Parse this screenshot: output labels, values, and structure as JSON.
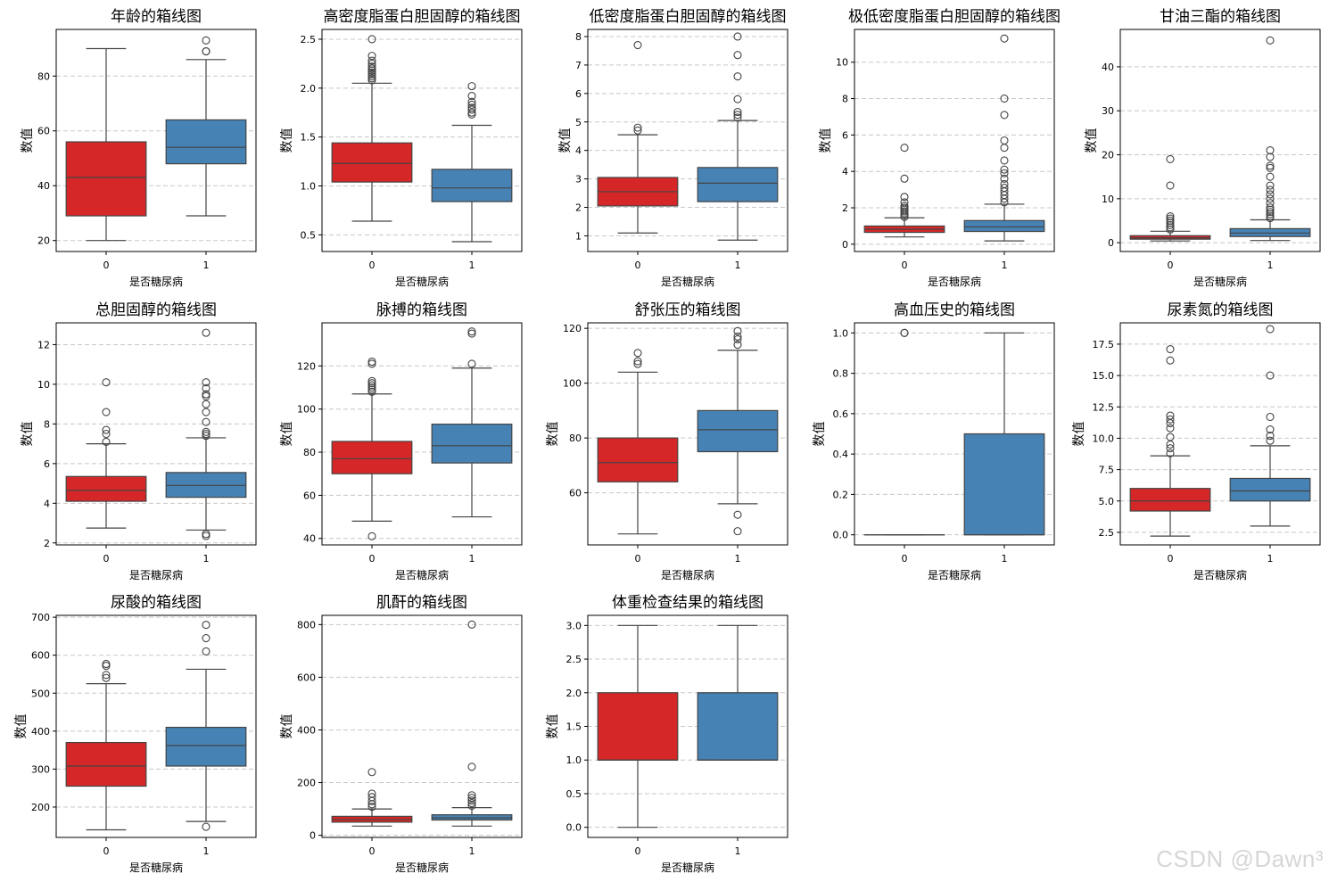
{
  "colors": {
    "class0": "#d62728",
    "class1": "#4682b4",
    "line": "#444444",
    "grid": "#c8c8c8"
  },
  "watermark": "CSDN @Dawn³",
  "chart_data": [
    {
      "type": "box",
      "title": "年龄的箱线图",
      "xlabel": "是否糖尿病",
      "ylabel": "数值",
      "categories": [
        "0",
        "1"
      ],
      "ylim": [
        16,
        97
      ],
      "yticks": [
        20,
        40,
        60,
        80
      ],
      "ytick_labels": [
        "20",
        "40",
        "60",
        "80"
      ],
      "boxes": [
        {
          "q1": 29,
          "median": 43,
          "q3": 56,
          "whislo": 20,
          "whishi": 90,
          "fliers": []
        },
        {
          "q1": 48,
          "median": 54,
          "q3": 64,
          "whislo": 29,
          "whishi": 86,
          "fliers": [
            89,
            89,
            93
          ]
        }
      ]
    },
    {
      "type": "box",
      "title": "高密度脂蛋白胆固醇的箱线图",
      "xlabel": "是否糖尿病",
      "ylabel": "数值",
      "categories": [
        "0",
        "1"
      ],
      "ylim": [
        0.33,
        2.6
      ],
      "yticks": [
        0.5,
        1.0,
        1.5,
        2.0,
        2.5
      ],
      "ytick_labels": [
        "0.5",
        "1.0",
        "1.5",
        "2.0",
        "2.5"
      ],
      "boxes": [
        {
          "q1": 1.04,
          "median": 1.23,
          "q3": 1.44,
          "whislo": 0.64,
          "whishi": 2.05,
          "fliers": [
            2.08,
            2.1,
            2.12,
            2.14,
            2.16,
            2.18,
            2.2,
            2.22,
            2.25,
            2.28,
            2.33,
            2.5
          ]
        },
        {
          "q1": 0.84,
          "median": 0.98,
          "q3": 1.17,
          "whislo": 0.43,
          "whishi": 1.62,
          "fliers": [
            1.73,
            1.75,
            1.78,
            1.8,
            1.83,
            1.86,
            1.92,
            2.02
          ]
        }
      ]
    },
    {
      "type": "box",
      "title": "低密度脂蛋白胆固醇的箱线图",
      "xlabel": "是否糖尿病",
      "ylabel": "数值",
      "categories": [
        "0",
        "1"
      ],
      "ylim": [
        0.45,
        8.25
      ],
      "yticks": [
        1,
        2,
        3,
        4,
        5,
        6,
        7,
        8
      ],
      "ytick_labels": [
        "1",
        "2",
        "3",
        "4",
        "5",
        "6",
        "7",
        "8"
      ],
      "boxes": [
        {
          "q1": 2.05,
          "median": 2.55,
          "q3": 3.05,
          "whislo": 1.1,
          "whishi": 4.55,
          "fliers": [
            4.7,
            4.8,
            7.7
          ]
        },
        {
          "q1": 2.2,
          "median": 2.85,
          "q3": 3.4,
          "whislo": 0.85,
          "whishi": 5.05,
          "fliers": [
            5.15,
            5.25,
            5.35,
            5.8,
            6.6,
            7.35,
            8.0
          ]
        }
      ]
    },
    {
      "type": "box",
      "title": "极低密度脂蛋白胆固醇的箱线图",
      "xlabel": "是否糖尿病",
      "ylabel": "数值",
      "categories": [
        "0",
        "1"
      ],
      "ylim": [
        -0.4,
        11.8
      ],
      "yticks": [
        0,
        2,
        4,
        6,
        8,
        10
      ],
      "ytick_labels": [
        "0",
        "2",
        "4",
        "6",
        "8",
        "10"
      ],
      "boxes": [
        {
          "q1": 0.65,
          "median": 0.82,
          "q3": 1.0,
          "whislo": 0.4,
          "whishi": 1.45,
          "fliers": [
            1.5,
            1.6,
            1.7,
            1.8,
            1.9,
            2.0,
            2.1,
            2.3,
            2.6,
            3.6,
            5.3
          ]
        },
        {
          "q1": 0.7,
          "median": 0.95,
          "q3": 1.3,
          "whislo": 0.18,
          "whishi": 2.2,
          "fliers": [
            2.3,
            2.5,
            2.7,
            2.9,
            3.1,
            3.3,
            3.6,
            3.9,
            4.1,
            4.6,
            5.3,
            5.7,
            7.1,
            8.0,
            11.3
          ]
        }
      ]
    },
    {
      "type": "box",
      "title": "甘油三酯的箱线图",
      "xlabel": "是否糖尿病",
      "ylabel": "数值",
      "categories": [
        "0",
        "1"
      ],
      "ylim": [
        -2.0,
        48.5
      ],
      "yticks": [
        0,
        10,
        20,
        30,
        40
      ],
      "ytick_labels": [
        "0",
        "10",
        "20",
        "30",
        "40"
      ],
      "boxes": [
        {
          "q1": 0.8,
          "median": 1.1,
          "q3": 1.6,
          "whislo": 0.4,
          "whishi": 2.6,
          "fliers": [
            3.0,
            3.5,
            4.0,
            4.5,
            5.0,
            5.5,
            6.0,
            13.0,
            19.0
          ]
        },
        {
          "q1": 1.4,
          "median": 2.2,
          "q3": 3.2,
          "whislo": 0.5,
          "whishi": 5.2,
          "fliers": [
            5.6,
            6.0,
            6.5,
            7.0,
            7.5,
            8.0,
            9.0,
            10.0,
            11.0,
            12.0,
            13.0,
            15.0,
            17.0,
            17.5,
            19.5,
            21.0,
            46.0
          ]
        }
      ]
    },
    {
      "type": "box",
      "title": "总胆固醇的箱线图",
      "xlabel": "是否糖尿病",
      "ylabel": "数值",
      "categories": [
        "0",
        "1"
      ],
      "ylim": [
        1.9,
        13.1
      ],
      "yticks": [
        2,
        4,
        6,
        8,
        10,
        12
      ],
      "ytick_labels": [
        "2",
        "4",
        "6",
        "8",
        "10",
        "12"
      ],
      "boxes": [
        {
          "q1": 4.1,
          "median": 4.65,
          "q3": 5.35,
          "whislo": 2.75,
          "whishi": 7.0,
          "fliers": [
            7.1,
            7.5,
            7.7,
            8.6,
            10.1
          ]
        },
        {
          "q1": 4.3,
          "median": 4.9,
          "q3": 5.55,
          "whislo": 2.65,
          "whishi": 7.3,
          "fliers": [
            2.35,
            2.45,
            7.4,
            7.5,
            7.6,
            8.1,
            8.6,
            9.0,
            9.4,
            9.5,
            9.8,
            10.1,
            12.6
          ]
        }
      ]
    },
    {
      "type": "box",
      "title": "脉搏的箱线图",
      "xlabel": "是否糖尿病",
      "ylabel": "数值",
      "categories": [
        "0",
        "1"
      ],
      "ylim": [
        37,
        140
      ],
      "yticks": [
        40,
        60,
        80,
        100,
        120
      ],
      "ytick_labels": [
        "40",
        "60",
        "80",
        "100",
        "120"
      ],
      "boxes": [
        {
          "q1": 70,
          "median": 77,
          "q3": 85,
          "whislo": 48,
          "whishi": 107,
          "fliers": [
            41,
            108,
            109,
            110,
            111,
            112,
            113,
            121,
            122
          ]
        },
        {
          "q1": 75,
          "median": 83,
          "q3": 93,
          "whislo": 50,
          "whishi": 119,
          "fliers": [
            121,
            135,
            136
          ]
        }
      ]
    },
    {
      "type": "box",
      "title": "舒张压的箱线图",
      "xlabel": "是否糖尿病",
      "ylabel": "数值",
      "categories": [
        "0",
        "1"
      ],
      "ylim": [
        41,
        122
      ],
      "yticks": [
        60,
        80,
        100,
        120
      ],
      "ytick_labels": [
        "60",
        "80",
        "100",
        "120"
      ],
      "boxes": [
        {
          "q1": 64,
          "median": 71,
          "q3": 80,
          "whislo": 45,
          "whishi": 104,
          "fliers": [
            107,
            108,
            111
          ]
        },
        {
          "q1": 75,
          "median": 83,
          "q3": 90,
          "whislo": 56,
          "whishi": 112,
          "fliers": [
            46,
            52,
            114,
            116,
            117,
            119
          ]
        }
      ]
    },
    {
      "type": "box",
      "title": "高血压史的箱线图",
      "xlabel": "是否糖尿病",
      "ylabel": "数值",
      "categories": [
        "0",
        "1"
      ],
      "ylim": [
        -0.05,
        1.05
      ],
      "yticks": [
        0.0,
        0.2,
        0.4,
        0.6,
        0.8,
        1.0
      ],
      "ytick_labels": [
        "0.0",
        "0.2",
        "0.4",
        "0.6",
        "0.8",
        "1.0"
      ],
      "boxes": [
        {
          "q1": 0,
          "median": 0,
          "q3": 0,
          "whislo": 0,
          "whishi": 0,
          "fliers": [
            1.0,
            1.0
          ]
        },
        {
          "q1": 0,
          "median": 0,
          "q3": 0.5,
          "whislo": 0,
          "whishi": 1.0,
          "fliers": []
        }
      ]
    },
    {
      "type": "box",
      "title": "尿素氮的箱线图",
      "xlabel": "是否糖尿病",
      "ylabel": "数值",
      "categories": [
        "0",
        "1"
      ],
      "ylim": [
        1.5,
        19.2
      ],
      "yticks": [
        2.5,
        5.0,
        7.5,
        10.0,
        12.5,
        15.0,
        17.5
      ],
      "ytick_labels": [
        "2.5",
        "5.0",
        "7.5",
        "10.0",
        "12.5",
        "15.0",
        "17.5"
      ],
      "boxes": [
        {
          "q1": 4.2,
          "median": 5.0,
          "q3": 6.0,
          "whislo": 2.2,
          "whishi": 8.6,
          "fliers": [
            8.8,
            9.2,
            9.5,
            10.1,
            10.8,
            11.2,
            11.5,
            11.8,
            16.2,
            17.1
          ]
        },
        {
          "q1": 5.0,
          "median": 5.8,
          "q3": 6.8,
          "whislo": 3.0,
          "whishi": 9.4,
          "fliers": [
            9.8,
            10.2,
            10.7,
            11.7,
            15.0,
            18.7
          ]
        }
      ]
    },
    {
      "type": "box",
      "title": "尿酸的箱线图",
      "xlabel": "是否糖尿病",
      "ylabel": "数值",
      "categories": [
        "0",
        "1"
      ],
      "ylim": [
        120,
        705
      ],
      "yticks": [
        200,
        300,
        400,
        500,
        600,
        700
      ],
      "ytick_labels": [
        "200",
        "300",
        "400",
        "500",
        "600",
        "700"
      ],
      "boxes": [
        {
          "q1": 255,
          "median": 308,
          "q3": 370,
          "whislo": 140,
          "whishi": 525,
          "fliers": [
            540,
            548,
            572,
            577
          ]
        },
        {
          "q1": 308,
          "median": 362,
          "q3": 410,
          "whislo": 162,
          "whishi": 563,
          "fliers": [
            148,
            610,
            645,
            680
          ]
        }
      ]
    },
    {
      "type": "box",
      "title": "肌酐的箱线图",
      "xlabel": "是否糖尿病",
      "ylabel": "数值",
      "categories": [
        "0",
        "1"
      ],
      "ylim": [
        -8,
        835
      ],
      "yticks": [
        0,
        200,
        400,
        600,
        800
      ],
      "ytick_labels": [
        "0",
        "200",
        "400",
        "600",
        "800"
      ],
      "boxes": [
        {
          "q1": 50,
          "median": 60,
          "q3": 72,
          "whislo": 35,
          "whishi": 100,
          "fliers": [
            108,
            118,
            130,
            145,
            158,
            240
          ]
        },
        {
          "q1": 58,
          "median": 66,
          "q3": 78,
          "whislo": 35,
          "whishi": 105,
          "fliers": [
            112,
            122,
            132,
            142,
            152,
            260,
            800
          ]
        }
      ]
    },
    {
      "type": "box",
      "title": "体重检查结果的箱线图",
      "xlabel": "是否糖尿病",
      "ylabel": "数值",
      "categories": [
        "0",
        "1"
      ],
      "ylim": [
        -0.15,
        3.15
      ],
      "yticks": [
        0.0,
        0.5,
        1.0,
        1.5,
        2.0,
        2.5,
        3.0
      ],
      "ytick_labels": [
        "0.0",
        "0.5",
        "1.0",
        "1.5",
        "2.0",
        "2.5",
        "3.0"
      ],
      "boxes": [
        {
          "q1": 1.0,
          "median": 1.0,
          "q3": 2.0,
          "whislo": 0.0,
          "whishi": 3.0,
          "fliers": []
        },
        {
          "q1": 1.0,
          "median": 1.0,
          "q3": 2.0,
          "whislo": 1.0,
          "whishi": 3.0,
          "fliers": []
        }
      ]
    }
  ]
}
